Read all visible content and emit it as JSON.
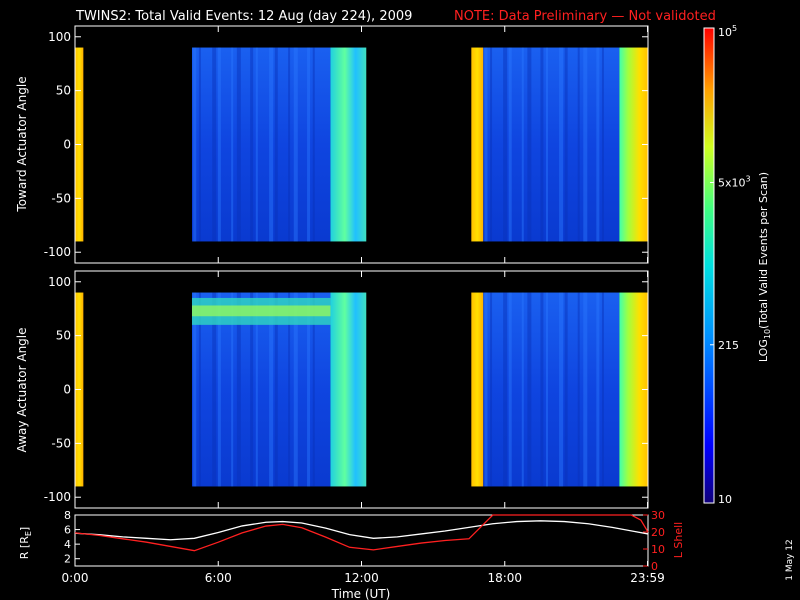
{
  "header": {
    "title": "TWINS2: Total Valid Events: 12 Aug (day 224), 2009",
    "note": "NOTE: Data Preliminary — Not validoted",
    "note_color": "#ff2020"
  },
  "side_stamp": "1 May 12",
  "chart_data": [
    {
      "type": "heatmap",
      "panel": "toward",
      "ylabel": "Toward Actuator Angle",
      "ylim": [
        -110,
        110
      ],
      "yticks": [
        "100",
        "50",
        "0",
        "-50",
        "-100"
      ],
      "x_hours_range": [
        0,
        24
      ],
      "angle_range": [
        -90,
        90
      ],
      "segments": [
        {
          "start_h": 0.0,
          "end_h": 0.35,
          "level": "high"
        },
        {
          "start_h": 4.9,
          "end_h": 10.7,
          "level": "low"
        },
        {
          "start_h": 10.7,
          "end_h": 12.2,
          "level": "medium"
        },
        {
          "start_h": 16.6,
          "end_h": 17.1,
          "level": "high"
        },
        {
          "start_h": 17.1,
          "end_h": 22.8,
          "level": "low"
        },
        {
          "start_h": 22.8,
          "end_h": 24.0,
          "level": "high"
        }
      ]
    },
    {
      "type": "heatmap",
      "panel": "away",
      "ylabel": "Away Actuator Angle",
      "ylim": [
        -110,
        110
      ],
      "yticks": [
        "100",
        "50",
        "0",
        "-50",
        "-100"
      ],
      "x_hours_range": [
        0,
        24
      ],
      "angle_range": [
        -90,
        90
      ],
      "segments": [
        {
          "start_h": 0.0,
          "end_h": 0.35,
          "level": "high"
        },
        {
          "start_h": 4.9,
          "end_h": 10.7,
          "level": "low"
        },
        {
          "start_h": 10.7,
          "end_h": 12.2,
          "level": "medium"
        },
        {
          "start_h": 16.6,
          "end_h": 17.1,
          "level": "high"
        },
        {
          "start_h": 17.1,
          "end_h": 22.8,
          "level": "low"
        },
        {
          "start_h": 22.8,
          "end_h": 24.0,
          "level": "high"
        }
      ],
      "band": {
        "start_h": 4.9,
        "end_h": 10.7,
        "angle_from": 60,
        "angle_to": 85,
        "level": "medium"
      }
    },
    {
      "type": "line",
      "panel": "orbit",
      "xlabel": "Time (UT)",
      "xticks": [
        "0:00",
        "6:00",
        "12:00",
        "18:00",
        "23:59"
      ],
      "x_hours": [
        0,
        6,
        12,
        18,
        23.98
      ],
      "ylabel": "R [R",
      "ylabel_sub": "E",
      "ylabel_end": "]",
      "ylim": [
        1,
        8
      ],
      "yticks": [
        "8",
        "6",
        "4",
        "2"
      ],
      "y2label": "L Shell",
      "y2lim": [
        0,
        30
      ],
      "y2ticks": [
        "30",
        "20",
        "10",
        "0"
      ],
      "series": [
        {
          "axis": "left",
          "color": "#ffffff",
          "x": [
            0,
            1,
            2,
            3,
            4,
            5,
            6,
            7,
            8,
            8.7,
            9.5,
            10.5,
            11.5,
            12.5,
            13.5,
            14.5,
            15.5,
            16.5,
            17.5,
            18.5,
            19.5,
            20.5,
            21.5,
            22.5,
            23.5,
            24
          ],
          "y": [
            5.5,
            5.3,
            5.0,
            4.8,
            4.6,
            4.8,
            5.6,
            6.5,
            7.0,
            7.1,
            6.9,
            6.2,
            5.3,
            4.8,
            5.0,
            5.4,
            5.8,
            6.3,
            6.8,
            7.1,
            7.2,
            7.1,
            6.8,
            6.3,
            5.7,
            5.4
          ]
        },
        {
          "axis": "right",
          "color": "#ff2020",
          "x": [
            0,
            1,
            2,
            3,
            4,
            5,
            6,
            7,
            8,
            8.7,
            9.5,
            10.5,
            11.5,
            12.5,
            13.5,
            14.5,
            15.5,
            16.5,
            17.5,
            23.3,
            23.7,
            24
          ],
          "y": [
            19.5,
            18.0,
            16.0,
            14.0,
            11.5,
            9.0,
            14.0,
            19.5,
            23.5,
            24.5,
            22.5,
            17.0,
            11.0,
            9.5,
            11.5,
            13.5,
            15.0,
            16.0,
            30.0,
            30.0,
            27.0,
            20.0
          ]
        }
      ]
    },
    {
      "type": "heatmap",
      "panel": "colorbar",
      "label_prefix": "LOG",
      "label_sub": "10",
      "label_rest": "(Total Valid Events per Scan)",
      "scale": "log",
      "range": [
        10,
        100000
      ],
      "ticks": [
        {
          "value": 100000,
          "base": "10",
          "exp": "5"
        },
        {
          "value": 5000,
          "base": "5x10",
          "exp": "3"
        },
        {
          "value": 215,
          "base": "215",
          "exp": ""
        },
        {
          "value": 10,
          "base": "10",
          "exp": ""
        }
      ]
    }
  ]
}
